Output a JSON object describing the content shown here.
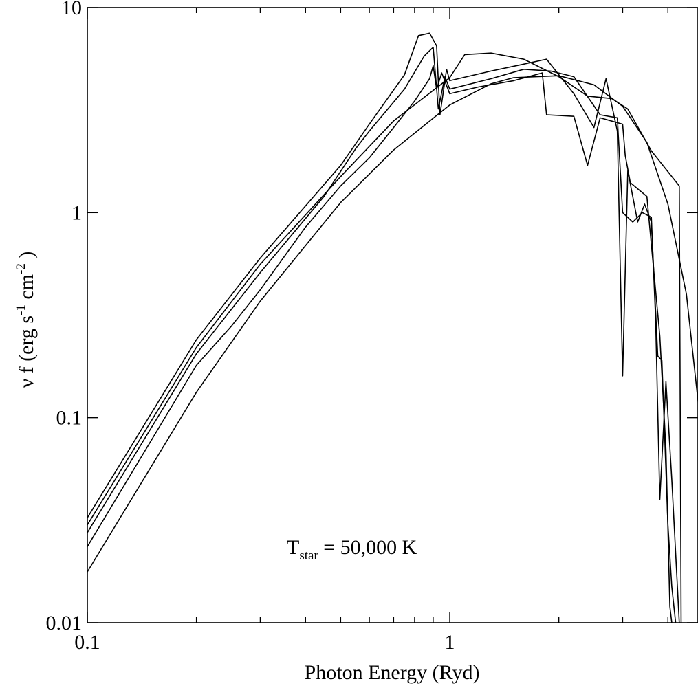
{
  "chart_data": {
    "type": "line",
    "xlabel": "Photon Energy (Ryd)",
    "ylabel": {
      "main": "ν f (erg s",
      "sup1": "-1",
      "mid": " cm",
      "sup2": "-2",
      "end": " )"
    },
    "annotation": {
      "prefix": "T",
      "sub": "star",
      "suffix": " = 50,000 K"
    },
    "x_scale": "log",
    "y_scale": "log",
    "xlim": [
      0.1,
      5.1
    ],
    "ylim": [
      0.01,
      10
    ],
    "x_ticks": [
      {
        "value": 0.1,
        "label": "0.1"
      },
      {
        "value": 1,
        "label": "1"
      }
    ],
    "y_ticks": [
      {
        "value": 0.01,
        "label": "0.01"
      },
      {
        "value": 0.1,
        "label": "0.1"
      },
      {
        "value": 1,
        "label": "1"
      },
      {
        "value": 10,
        "label": "10"
      }
    ],
    "grid": false,
    "legend": "none",
    "series": [
      {
        "values": [
          [
            0.1,
            0.0177
          ],
          [
            0.2,
            0.133
          ],
          [
            0.3,
            0.37
          ],
          [
            0.5,
            1.12
          ],
          [
            0.7,
            2.02
          ],
          [
            1,
            3.35
          ],
          [
            1.3,
            4.25
          ],
          [
            1.5,
            4.55
          ],
          [
            2,
            4.65
          ],
          [
            2.5,
            4.2
          ],
          [
            3,
            3.3
          ],
          [
            3.5,
            2.2
          ],
          [
            4,
            1.1
          ],
          [
            4.5,
            0.4
          ],
          [
            5.1,
            0.052
          ]
        ]
      },
      {
        "values": [
          [
            0.1,
            0.0235
          ],
          [
            0.2,
            0.18
          ],
          [
            0.25,
            0.28
          ],
          [
            0.3,
            0.42
          ],
          [
            0.4,
            0.85
          ],
          [
            0.5,
            1.35
          ],
          [
            0.6,
            1.85
          ],
          [
            0.7,
            2.6
          ],
          [
            0.8,
            3.5
          ],
          [
            0.88,
            4.5
          ],
          [
            0.9,
            5.2
          ],
          [
            0.92,
            4.0
          ],
          [
            0.95,
            4.8
          ],
          [
            1,
            3.8
          ],
          [
            1.2,
            4.1
          ],
          [
            1.5,
            4.4
          ],
          [
            1.8,
            4.8
          ],
          [
            1.85,
            3.0
          ],
          [
            2.2,
            2.95
          ],
          [
            2.4,
            1.7
          ],
          [
            2.6,
            2.9
          ],
          [
            3.0,
            2.7
          ],
          [
            3.05,
            1.9
          ],
          [
            3.15,
            1.4
          ],
          [
            3.5,
            1.2
          ],
          [
            3.8,
            0.25
          ],
          [
            3.95,
            0.07
          ],
          [
            4.05,
            0.012
          ],
          [
            4.1,
            0.002
          ]
        ]
      },
      {
        "values": [
          [
            0.1,
            0.0275
          ],
          [
            0.2,
            0.205
          ],
          [
            0.3,
            0.51
          ],
          [
            0.45,
            1.2
          ],
          [
            0.55,
            2.05
          ],
          [
            0.6,
            2.5
          ],
          [
            0.75,
            4.0
          ],
          [
            0.85,
            5.8
          ],
          [
            0.9,
            6.4
          ],
          [
            0.93,
            3.2
          ],
          [
            0.97,
            4.6
          ],
          [
            1,
            4.0
          ],
          [
            1.3,
            4.5
          ],
          [
            1.6,
            5.0
          ],
          [
            1.9,
            4.9
          ],
          [
            2.2,
            4.6
          ],
          [
            2.6,
            3.0
          ],
          [
            2.9,
            2.9
          ],
          [
            3.0,
            1.0
          ],
          [
            3.2,
            0.9
          ],
          [
            3.4,
            1.0
          ],
          [
            3.6,
            0.95
          ],
          [
            3.7,
            0.3
          ],
          [
            3.8,
            0.04
          ],
          [
            3.95,
            0.15
          ],
          [
            4.1,
            0.05
          ],
          [
            4.3,
            0.004
          ]
        ]
      },
      {
        "values": [
          [
            0.1,
            0.0325
          ],
          [
            0.2,
            0.24
          ],
          [
            0.3,
            0.6
          ],
          [
            0.5,
            1.7
          ],
          [
            0.6,
            2.7
          ],
          [
            0.75,
            4.7
          ],
          [
            0.82,
            7.3
          ],
          [
            0.88,
            7.5
          ],
          [
            0.92,
            6.5
          ],
          [
            0.94,
            3.0
          ],
          [
            0.98,
            5.0
          ],
          [
            1,
            4.4
          ],
          [
            1.3,
            4.9
          ],
          [
            1.6,
            5.3
          ],
          [
            1.85,
            5.6
          ],
          [
            2.2,
            3.8
          ],
          [
            2.5,
            2.6
          ],
          [
            2.7,
            4.5
          ],
          [
            2.9,
            2.5
          ],
          [
            3.0,
            0.16
          ],
          [
            3.1,
            1.6
          ],
          [
            3.3,
            0.9
          ],
          [
            3.45,
            1.1
          ],
          [
            3.6,
            0.9
          ],
          [
            3.75,
            0.2
          ],
          [
            3.85,
            0.19
          ],
          [
            4.0,
            0.03
          ],
          [
            4.1,
            0.015
          ],
          [
            4.2,
            0.003
          ]
        ]
      },
      {
        "values": [
          [
            0.1,
            0.03
          ],
          [
            0.2,
            0.22
          ],
          [
            0.3,
            0.56
          ],
          [
            0.5,
            1.5
          ],
          [
            0.7,
            2.8
          ],
          [
            1,
            4.55
          ],
          [
            1.1,
            5.9
          ],
          [
            1.3,
            6.0
          ],
          [
            1.6,
            5.6
          ],
          [
            2.0,
            4.6
          ],
          [
            2.4,
            3.7
          ],
          [
            2.8,
            3.6
          ],
          [
            3.1,
            3.2
          ],
          [
            3.6,
            2.0
          ],
          [
            4.3,
            1.35
          ],
          [
            4.35,
            0.004
          ]
        ]
      }
    ]
  }
}
